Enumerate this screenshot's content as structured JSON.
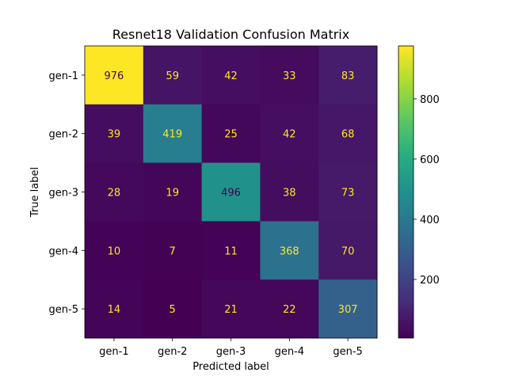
{
  "chart_data": {
    "type": "heatmap",
    "title": "Resnet18 Validation Confusion Matrix",
    "xlabel": "Predicted label",
    "ylabel": "True label",
    "x_categories": [
      "gen-1",
      "gen-2",
      "gen-3",
      "gen-4",
      "gen-5"
    ],
    "y_categories": [
      "gen-1",
      "gen-2",
      "gen-3",
      "gen-4",
      "gen-5"
    ],
    "values": [
      [
        976,
        59,
        42,
        33,
        83
      ],
      [
        39,
        419,
        25,
        42,
        68
      ],
      [
        28,
        19,
        496,
        38,
        73
      ],
      [
        10,
        7,
        11,
        368,
        70
      ],
      [
        14,
        5,
        21,
        22,
        307
      ]
    ],
    "colormap": "viridis",
    "color_range": [
      5,
      976
    ],
    "colorbar_ticks": [
      200,
      400,
      600,
      800
    ],
    "grid": false,
    "text_colors": {
      "light": "#fde725",
      "dark": "#440154"
    }
  }
}
